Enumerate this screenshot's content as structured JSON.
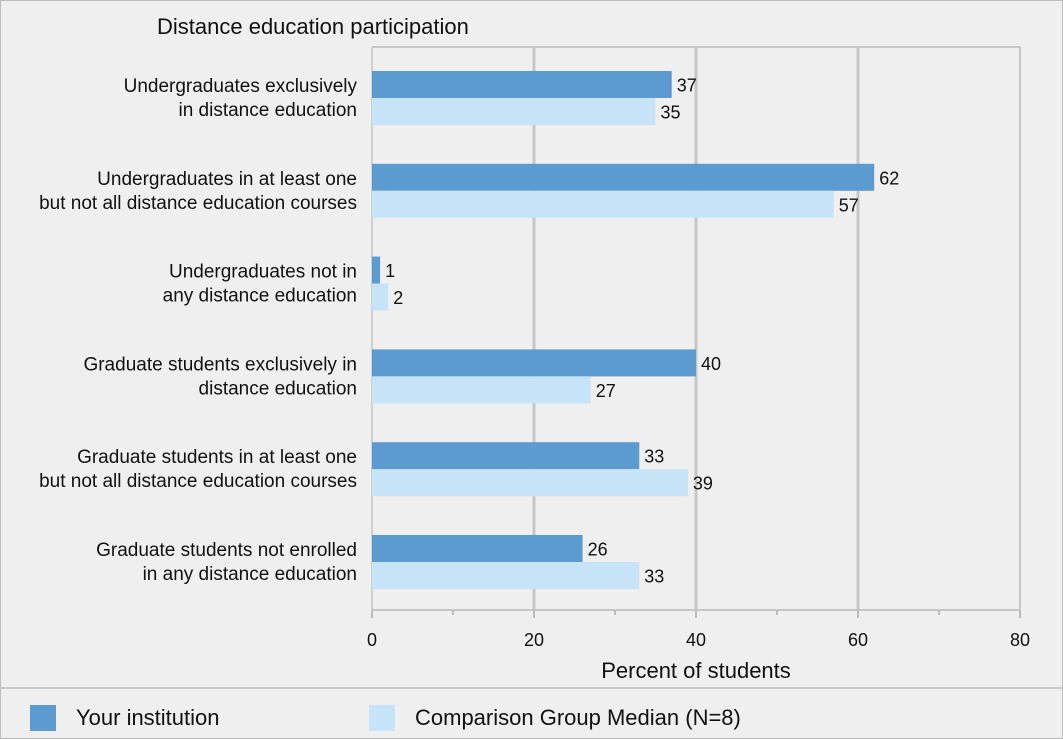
{
  "chart_data": {
    "type": "bar",
    "orientation": "horizontal",
    "title": "Distance education participation",
    "xlabel": "Percent of students",
    "xlim": [
      0,
      80
    ],
    "xticks": [
      0,
      20,
      40,
      60,
      80
    ],
    "grid": true,
    "legend_position": "bottom",
    "categories": [
      [
        "Undergraduates exclusively",
        "in distance education"
      ],
      [
        "Undergraduates in at least one",
        "but not all distance education courses"
      ],
      [
        "Undergraduates not in",
        "any distance education"
      ],
      [
        "Graduate students exclusively in",
        "distance education"
      ],
      [
        "Graduate students in at least one",
        "but not all distance education courses"
      ],
      [
        "Graduate students not enrolled",
        "in any distance education"
      ]
    ],
    "series": [
      {
        "name": "Your institution",
        "color": "#5b9bd0",
        "values": [
          37,
          62,
          1,
          40,
          33,
          26
        ]
      },
      {
        "name": "Comparison Group Median (N=8)",
        "color": "#c6e3f7",
        "values": [
          35,
          57,
          2,
          27,
          39,
          33
        ]
      }
    ]
  }
}
